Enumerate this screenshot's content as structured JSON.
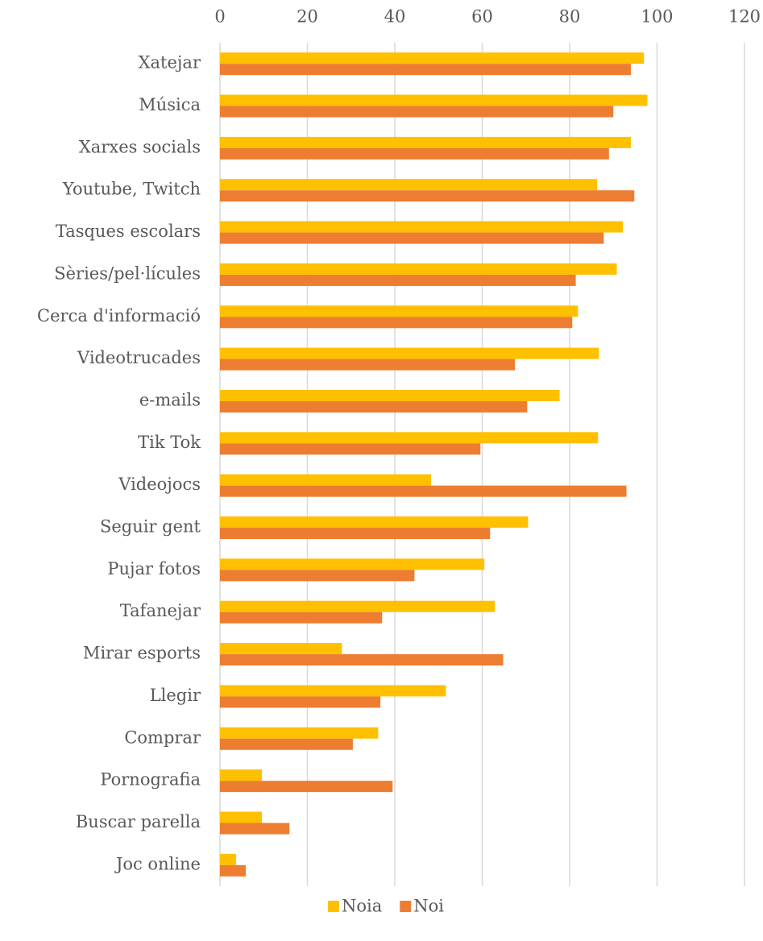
{
  "chart_data": {
    "type": "hbar",
    "categories": [
      "Xatejar",
      "Música",
      "Xarxes socials",
      "Youtube, Twitch",
      "Tasques escolars",
      "Sèries/pel·lícules",
      "Cerca d'informació",
      "Videotrucades",
      "e-mails",
      "Tik Tok",
      "Videojocs",
      "Seguir gent",
      "Pujar fotos",
      "Tafanejar",
      "Mirar esports",
      "Llegir",
      "Comprar",
      "Pornografia",
      "Buscar parella",
      "Joc online"
    ],
    "series": [
      {
        "name": "Noia",
        "color": "#FFC000",
        "values": [
          97,
          97.8,
          94,
          86.3,
          92.2,
          90.8,
          81.9,
          86.7,
          77.7,
          86.5,
          48.3,
          70.5,
          60.5,
          62.9,
          27.9,
          51.7,
          36.2,
          9.6,
          9.6,
          3.7
        ]
      },
      {
        "name": "Noi",
        "color": "#ED7D31",
        "values": [
          94,
          90,
          89,
          94.8,
          87.8,
          81.4,
          80.6,
          67.5,
          70.3,
          59.6,
          93,
          61.8,
          44.5,
          37.1,
          64.8,
          36.7,
          30.4,
          39.5,
          15.9,
          5.9
        ]
      }
    ],
    "xlim": [
      0,
      120
    ],
    "xticks": [
      0,
      20,
      40,
      60,
      80,
      100,
      120
    ],
    "grid": true,
    "legend": "bottom"
  }
}
